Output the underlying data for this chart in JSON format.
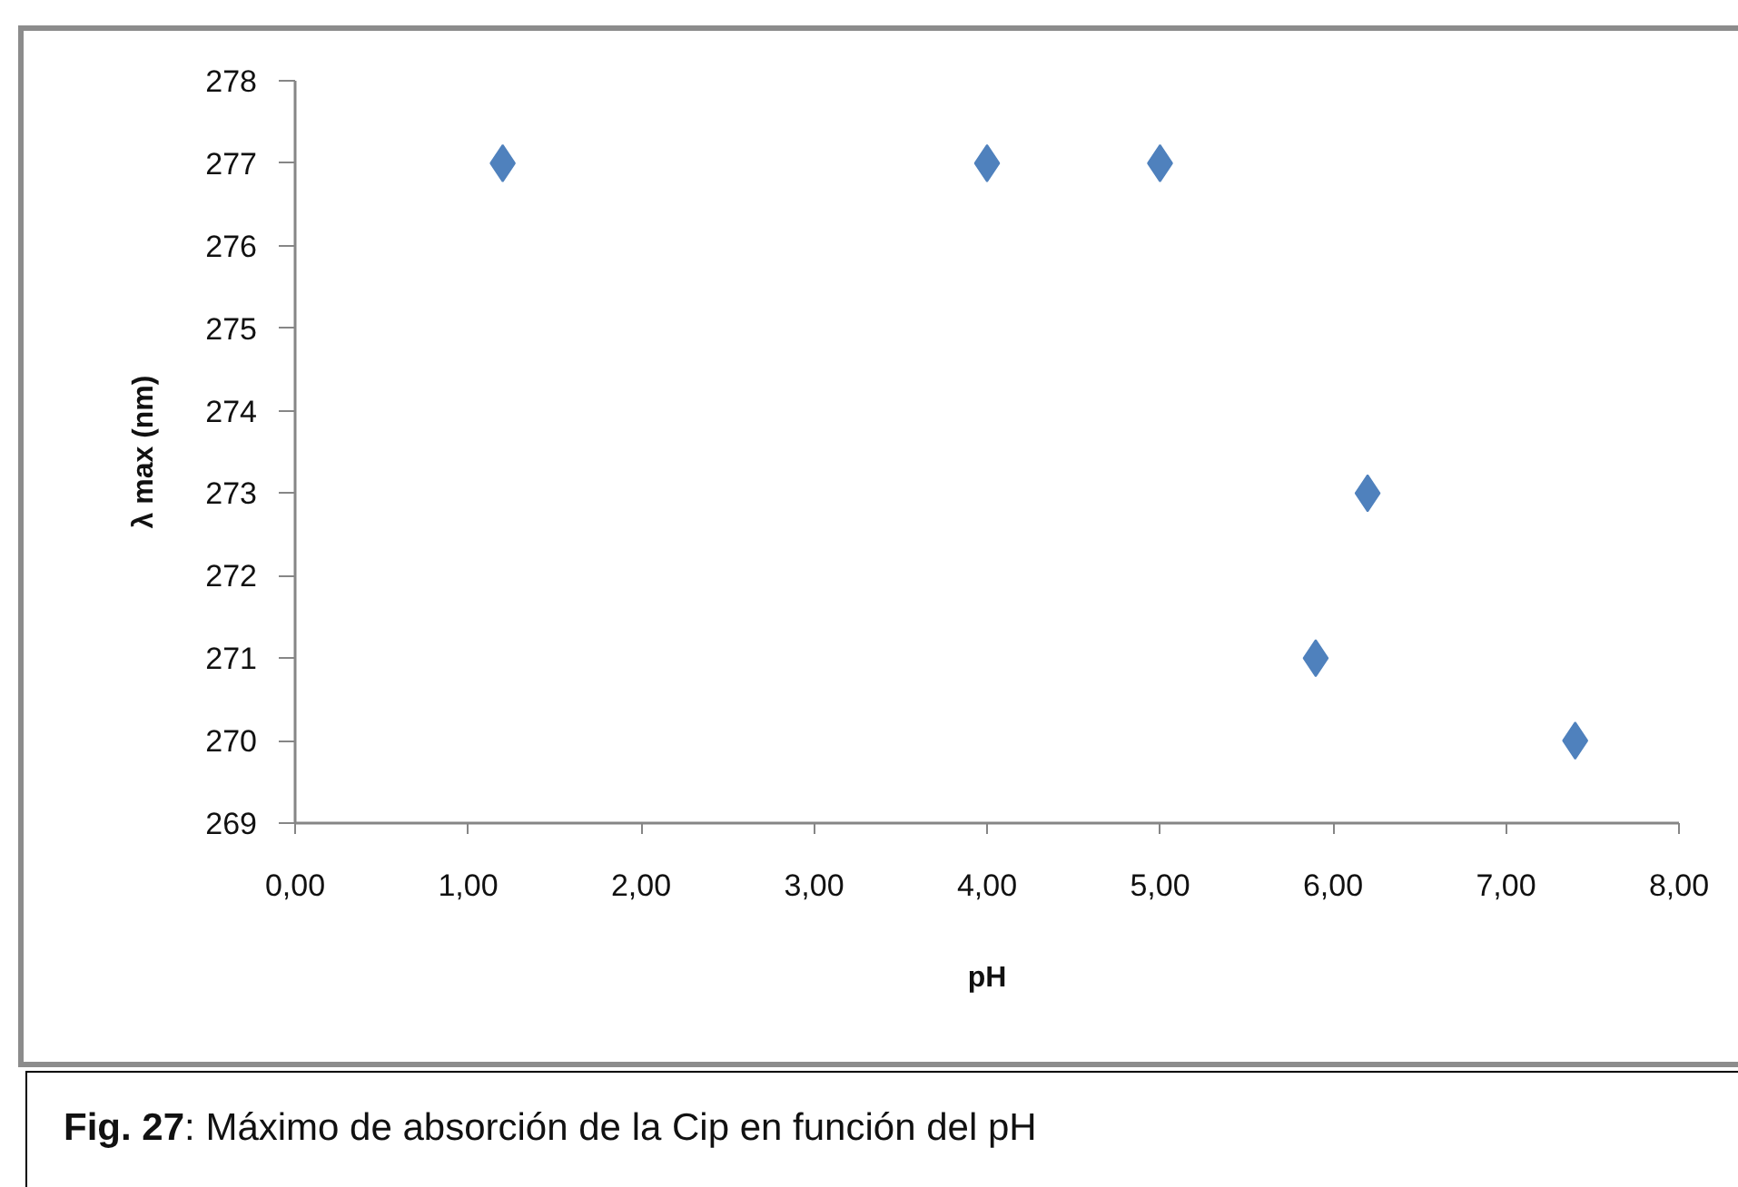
{
  "chart_data": {
    "type": "scatter",
    "xlabel": "pH",
    "ylabel": "λ max (nm)",
    "annotations": [
      "Fig. 27: Máximo de absorción de la Cip en función del pH"
    ],
    "x": [
      1.2,
      4.0,
      5.0,
      5.9,
      6.2,
      7.4
    ],
    "series": [
      {
        "color": "#4f81bd",
        "values": [
          277,
          277,
          277,
          271,
          273,
          270
        ]
      }
    ],
    "xlim": [
      0,
      8
    ],
    "ylim": [
      269,
      278
    ],
    "xticks": [
      {
        "value": 0,
        "label": "0,00"
      },
      {
        "value": 1,
        "label": "1,00"
      },
      {
        "value": 2,
        "label": "2,00"
      },
      {
        "value": 3,
        "label": "3,00"
      },
      {
        "value": 4,
        "label": "4,00"
      },
      {
        "value": 5,
        "label": "5,00"
      },
      {
        "value": 6,
        "label": "6,00"
      },
      {
        "value": 7,
        "label": "7,00"
      },
      {
        "value": 8,
        "label": "8,00"
      }
    ],
    "yticks": [
      269,
      270,
      271,
      272,
      273,
      274,
      275,
      276,
      277,
      278
    ],
    "grid": false,
    "marker": "diamond"
  }
}
